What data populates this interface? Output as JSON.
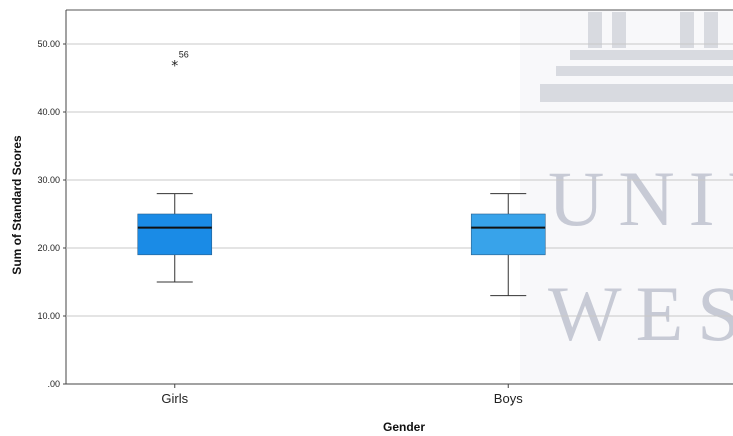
{
  "watermark": {
    "line1": "UNIV",
    "line2": "WES"
  },
  "chart_data": {
    "type": "boxplot",
    "xlabel": "Gender",
    "ylabel": "Sum of Standard Scores",
    "ylim": [
      0,
      55
    ],
    "ytick_values": [
      0,
      10,
      20,
      30,
      40,
      50
    ],
    "ytick_labels": [
      ".00",
      "10.00",
      "20.00",
      "30.00",
      "40.00",
      "50.00"
    ],
    "grid": true,
    "categories": [
      "Girls",
      "Boys"
    ],
    "boxes": [
      {
        "category": "Girls",
        "whisker_low": 15,
        "q1": 19,
        "median": 23,
        "q3": 25,
        "whisker_high": 28,
        "color": "#1a8be6"
      },
      {
        "category": "Boys",
        "whisker_low": 13,
        "q1": 19,
        "median": 23,
        "q3": 25,
        "whisker_high": 28,
        "color": "#38a3ea"
      }
    ],
    "outliers": [
      {
        "category": "Girls",
        "value": 47,
        "symbol": "*",
        "label": "56"
      }
    ]
  }
}
